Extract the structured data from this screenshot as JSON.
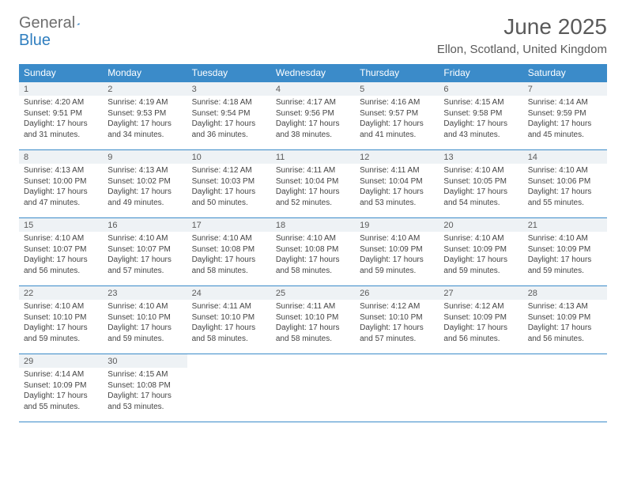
{
  "logo": {
    "word1": "General",
    "word2": "Blue"
  },
  "title": "June 2025",
  "location": "Ellon, Scotland, United Kingdom",
  "weekdays": [
    "Sunday",
    "Monday",
    "Tuesday",
    "Wednesday",
    "Thursday",
    "Friday",
    "Saturday"
  ],
  "colors": {
    "header_bg": "#3b8bc9",
    "header_text": "#ffffff",
    "daynum_bg": "#eef2f5",
    "border": "#3b8bc9",
    "logo_gray": "#6e6e6e",
    "logo_blue": "#2f7ebf",
    "text": "#444444"
  },
  "days": [
    {
      "n": "1",
      "sunrise": "Sunrise: 4:20 AM",
      "sunset": "Sunset: 9:51 PM",
      "daylight1": "Daylight: 17 hours",
      "daylight2": "and 31 minutes."
    },
    {
      "n": "2",
      "sunrise": "Sunrise: 4:19 AM",
      "sunset": "Sunset: 9:53 PM",
      "daylight1": "Daylight: 17 hours",
      "daylight2": "and 34 minutes."
    },
    {
      "n": "3",
      "sunrise": "Sunrise: 4:18 AM",
      "sunset": "Sunset: 9:54 PM",
      "daylight1": "Daylight: 17 hours",
      "daylight2": "and 36 minutes."
    },
    {
      "n": "4",
      "sunrise": "Sunrise: 4:17 AM",
      "sunset": "Sunset: 9:56 PM",
      "daylight1": "Daylight: 17 hours",
      "daylight2": "and 38 minutes."
    },
    {
      "n": "5",
      "sunrise": "Sunrise: 4:16 AM",
      "sunset": "Sunset: 9:57 PM",
      "daylight1": "Daylight: 17 hours",
      "daylight2": "and 41 minutes."
    },
    {
      "n": "6",
      "sunrise": "Sunrise: 4:15 AM",
      "sunset": "Sunset: 9:58 PM",
      "daylight1": "Daylight: 17 hours",
      "daylight2": "and 43 minutes."
    },
    {
      "n": "7",
      "sunrise": "Sunrise: 4:14 AM",
      "sunset": "Sunset: 9:59 PM",
      "daylight1": "Daylight: 17 hours",
      "daylight2": "and 45 minutes."
    },
    {
      "n": "8",
      "sunrise": "Sunrise: 4:13 AM",
      "sunset": "Sunset: 10:00 PM",
      "daylight1": "Daylight: 17 hours",
      "daylight2": "and 47 minutes."
    },
    {
      "n": "9",
      "sunrise": "Sunrise: 4:13 AM",
      "sunset": "Sunset: 10:02 PM",
      "daylight1": "Daylight: 17 hours",
      "daylight2": "and 49 minutes."
    },
    {
      "n": "10",
      "sunrise": "Sunrise: 4:12 AM",
      "sunset": "Sunset: 10:03 PM",
      "daylight1": "Daylight: 17 hours",
      "daylight2": "and 50 minutes."
    },
    {
      "n": "11",
      "sunrise": "Sunrise: 4:11 AM",
      "sunset": "Sunset: 10:04 PM",
      "daylight1": "Daylight: 17 hours",
      "daylight2": "and 52 minutes."
    },
    {
      "n": "12",
      "sunrise": "Sunrise: 4:11 AM",
      "sunset": "Sunset: 10:04 PM",
      "daylight1": "Daylight: 17 hours",
      "daylight2": "and 53 minutes."
    },
    {
      "n": "13",
      "sunrise": "Sunrise: 4:10 AM",
      "sunset": "Sunset: 10:05 PM",
      "daylight1": "Daylight: 17 hours",
      "daylight2": "and 54 minutes."
    },
    {
      "n": "14",
      "sunrise": "Sunrise: 4:10 AM",
      "sunset": "Sunset: 10:06 PM",
      "daylight1": "Daylight: 17 hours",
      "daylight2": "and 55 minutes."
    },
    {
      "n": "15",
      "sunrise": "Sunrise: 4:10 AM",
      "sunset": "Sunset: 10:07 PM",
      "daylight1": "Daylight: 17 hours",
      "daylight2": "and 56 minutes."
    },
    {
      "n": "16",
      "sunrise": "Sunrise: 4:10 AM",
      "sunset": "Sunset: 10:07 PM",
      "daylight1": "Daylight: 17 hours",
      "daylight2": "and 57 minutes."
    },
    {
      "n": "17",
      "sunrise": "Sunrise: 4:10 AM",
      "sunset": "Sunset: 10:08 PM",
      "daylight1": "Daylight: 17 hours",
      "daylight2": "and 58 minutes."
    },
    {
      "n": "18",
      "sunrise": "Sunrise: 4:10 AM",
      "sunset": "Sunset: 10:08 PM",
      "daylight1": "Daylight: 17 hours",
      "daylight2": "and 58 minutes."
    },
    {
      "n": "19",
      "sunrise": "Sunrise: 4:10 AM",
      "sunset": "Sunset: 10:09 PM",
      "daylight1": "Daylight: 17 hours",
      "daylight2": "and 59 minutes."
    },
    {
      "n": "20",
      "sunrise": "Sunrise: 4:10 AM",
      "sunset": "Sunset: 10:09 PM",
      "daylight1": "Daylight: 17 hours",
      "daylight2": "and 59 minutes."
    },
    {
      "n": "21",
      "sunrise": "Sunrise: 4:10 AM",
      "sunset": "Sunset: 10:09 PM",
      "daylight1": "Daylight: 17 hours",
      "daylight2": "and 59 minutes."
    },
    {
      "n": "22",
      "sunrise": "Sunrise: 4:10 AM",
      "sunset": "Sunset: 10:10 PM",
      "daylight1": "Daylight: 17 hours",
      "daylight2": "and 59 minutes."
    },
    {
      "n": "23",
      "sunrise": "Sunrise: 4:10 AM",
      "sunset": "Sunset: 10:10 PM",
      "daylight1": "Daylight: 17 hours",
      "daylight2": "and 59 minutes."
    },
    {
      "n": "24",
      "sunrise": "Sunrise: 4:11 AM",
      "sunset": "Sunset: 10:10 PM",
      "daylight1": "Daylight: 17 hours",
      "daylight2": "and 58 minutes."
    },
    {
      "n": "25",
      "sunrise": "Sunrise: 4:11 AM",
      "sunset": "Sunset: 10:10 PM",
      "daylight1": "Daylight: 17 hours",
      "daylight2": "and 58 minutes."
    },
    {
      "n": "26",
      "sunrise": "Sunrise: 4:12 AM",
      "sunset": "Sunset: 10:10 PM",
      "daylight1": "Daylight: 17 hours",
      "daylight2": "and 57 minutes."
    },
    {
      "n": "27",
      "sunrise": "Sunrise: 4:12 AM",
      "sunset": "Sunset: 10:09 PM",
      "daylight1": "Daylight: 17 hours",
      "daylight2": "and 56 minutes."
    },
    {
      "n": "28",
      "sunrise": "Sunrise: 4:13 AM",
      "sunset": "Sunset: 10:09 PM",
      "daylight1": "Daylight: 17 hours",
      "daylight2": "and 56 minutes."
    },
    {
      "n": "29",
      "sunrise": "Sunrise: 4:14 AM",
      "sunset": "Sunset: 10:09 PM",
      "daylight1": "Daylight: 17 hours",
      "daylight2": "and 55 minutes."
    },
    {
      "n": "30",
      "sunrise": "Sunrise: 4:15 AM",
      "sunset": "Sunset: 10:08 PM",
      "daylight1": "Daylight: 17 hours",
      "daylight2": "and 53 minutes."
    }
  ]
}
